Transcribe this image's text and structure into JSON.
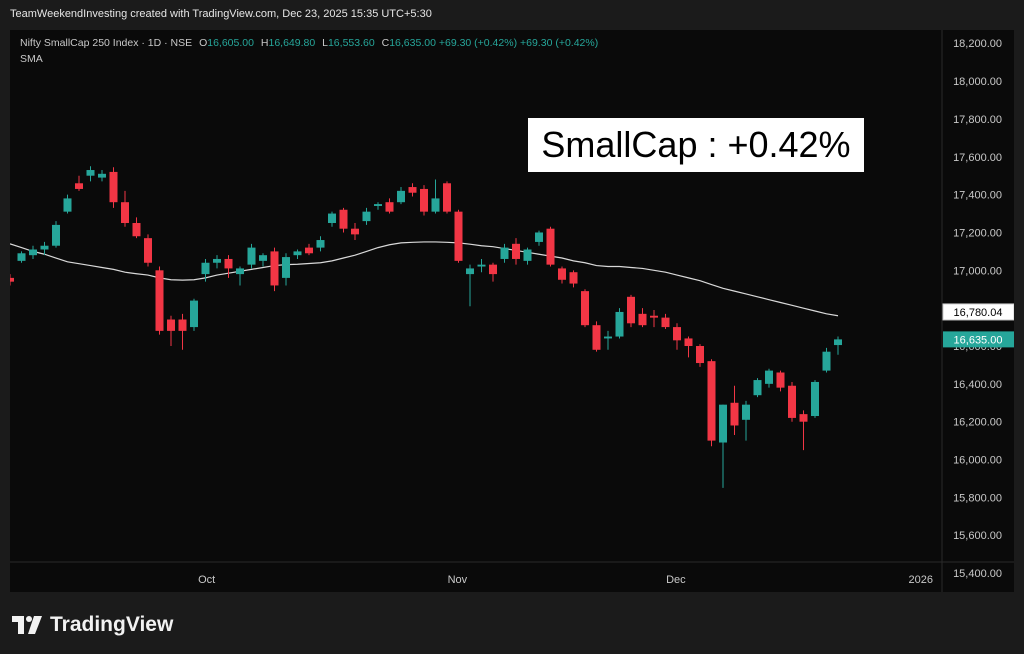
{
  "header": {
    "attribution": "TeamWeekendInvesting created with TradingView.com, Dec 23, 2025 15:35 UTC+5:30"
  },
  "legend": {
    "symbol": "Nifty SmallCap 250 Index · 1D · NSE",
    "o_label": "O",
    "o_value": "16,605.00",
    "h_label": "H",
    "h_value": "16,649.80",
    "l_label": "L",
    "l_value": "16,553.60",
    "c_label": "C",
    "c_value": "16,635.00",
    "change": "+69.30 (+0.42%)",
    "change2": "+69.30 (+0.42%)",
    "indicator": "SMA"
  },
  "annotation": {
    "text": "SmallCap : +0.42%"
  },
  "footer": {
    "brand": "TradingView"
  },
  "colors": {
    "up": "#26a69a",
    "down": "#f23645",
    "sma": "#d9d9d9",
    "background": "#0a0a0a",
    "frame": "#1b1b1b"
  },
  "chart_data": {
    "type": "candlestick",
    "ylim": [
      15300,
      18270
    ],
    "y_ticks": [
      "18,200.00",
      "18,000.00",
      "17,800.00",
      "17,600.00",
      "17,400.00",
      "17,200.00",
      "17,000.00",
      "16,800.00",
      "16,600.00",
      "16,400.00",
      "16,200.00",
      "16,000.00",
      "15,800.00",
      "15,600.00",
      "15,400.00"
    ],
    "x_ticks": [
      "Oct",
      "Nov",
      "Dec",
      "2026"
    ],
    "price_labels": [
      {
        "name": "sma-value",
        "value": 16780.04,
        "text": "16,780.04"
      },
      {
        "name": "last-close",
        "value": 16635,
        "text": "16,635.00"
      }
    ],
    "candles": [
      {
        "o": 16960,
        "h": 16980,
        "l": 16920,
        "c": 16940
      },
      {
        "o": 17050,
        "h": 17100,
        "l": 17040,
        "c": 17090
      },
      {
        "o": 17080,
        "h": 17130,
        "l": 17060,
        "c": 17110
      },
      {
        "o": 17110,
        "h": 17150,
        "l": 17080,
        "c": 17130
      },
      {
        "o": 17130,
        "h": 17260,
        "l": 17120,
        "c": 17240
      },
      {
        "o": 17310,
        "h": 17400,
        "l": 17300,
        "c": 17380
      },
      {
        "o": 17460,
        "h": 17500,
        "l": 17420,
        "c": 17430
      },
      {
        "o": 17500,
        "h": 17550,
        "l": 17470,
        "c": 17530
      },
      {
        "o": 17490,
        "h": 17530,
        "l": 17470,
        "c": 17510
      },
      {
        "o": 17520,
        "h": 17545,
        "l": 17330,
        "c": 17360
      },
      {
        "o": 17360,
        "h": 17420,
        "l": 17230,
        "c": 17250
      },
      {
        "o": 17250,
        "h": 17280,
        "l": 17170,
        "c": 17180
      },
      {
        "o": 17170,
        "h": 17190,
        "l": 17020,
        "c": 17040
      },
      {
        "o": 17000,
        "h": 17020,
        "l": 16660,
        "c": 16680
      },
      {
        "o": 16740,
        "h": 16760,
        "l": 16600,
        "c": 16680
      },
      {
        "o": 16740,
        "h": 16770,
        "l": 16580,
        "c": 16680
      },
      {
        "o": 16700,
        "h": 16850,
        "l": 16680,
        "c": 16840
      },
      {
        "o": 16980,
        "h": 17060,
        "l": 16940,
        "c": 17040
      },
      {
        "o": 17040,
        "h": 17080,
        "l": 17010,
        "c": 17060
      },
      {
        "o": 17060,
        "h": 17080,
        "l": 16960,
        "c": 17010
      },
      {
        "o": 16980,
        "h": 17020,
        "l": 16920,
        "c": 17010
      },
      {
        "o": 17030,
        "h": 17140,
        "l": 17010,
        "c": 17120
      },
      {
        "o": 17050,
        "h": 17090,
        "l": 17020,
        "c": 17080
      },
      {
        "o": 17100,
        "h": 17120,
        "l": 16890,
        "c": 16920
      },
      {
        "o": 16960,
        "h": 17090,
        "l": 16920,
        "c": 17070
      },
      {
        "o": 17080,
        "h": 17110,
        "l": 17060,
        "c": 17100
      },
      {
        "o": 17120,
        "h": 17140,
        "l": 17080,
        "c": 17090
      },
      {
        "o": 17120,
        "h": 17180,
        "l": 17100,
        "c": 17160
      },
      {
        "o": 17250,
        "h": 17310,
        "l": 17230,
        "c": 17300
      },
      {
        "o": 17320,
        "h": 17330,
        "l": 17200,
        "c": 17220
      },
      {
        "o": 17220,
        "h": 17250,
        "l": 17160,
        "c": 17190
      },
      {
        "o": 17260,
        "h": 17330,
        "l": 17240,
        "c": 17310
      },
      {
        "o": 17340,
        "h": 17360,
        "l": 17320,
        "c": 17350
      },
      {
        "o": 17360,
        "h": 17380,
        "l": 17300,
        "c": 17310
      },
      {
        "o": 17360,
        "h": 17440,
        "l": 17350,
        "c": 17420
      },
      {
        "o": 17440,
        "h": 17460,
        "l": 17390,
        "c": 17410
      },
      {
        "o": 17430,
        "h": 17450,
        "l": 17290,
        "c": 17310
      },
      {
        "o": 17310,
        "h": 17480,
        "l": 17300,
        "c": 17380
      },
      {
        "o": 17460,
        "h": 17470,
        "l": 17300,
        "c": 17310
      },
      {
        "o": 17310,
        "h": 17320,
        "l": 17040,
        "c": 17050
      },
      {
        "o": 16980,
        "h": 17030,
        "l": 16810,
        "c": 17010
      },
      {
        "o": 17020,
        "h": 17060,
        "l": 16990,
        "c": 17030
      },
      {
        "o": 17030,
        "h": 17040,
        "l": 16940,
        "c": 16980
      },
      {
        "o": 17060,
        "h": 17140,
        "l": 17040,
        "c": 17120
      },
      {
        "o": 17140,
        "h": 17170,
        "l": 17030,
        "c": 17060
      },
      {
        "o": 17050,
        "h": 17120,
        "l": 17030,
        "c": 17110
      },
      {
        "o": 17150,
        "h": 17210,
        "l": 17130,
        "c": 17200
      },
      {
        "o": 17220,
        "h": 17230,
        "l": 17020,
        "c": 17030
      },
      {
        "o": 17010,
        "h": 17020,
        "l": 16930,
        "c": 16950
      },
      {
        "o": 16990,
        "h": 17000,
        "l": 16910,
        "c": 16930
      },
      {
        "o": 16890,
        "h": 16900,
        "l": 16700,
        "c": 16710
      },
      {
        "o": 16710,
        "h": 16730,
        "l": 16570,
        "c": 16580
      },
      {
        "o": 16640,
        "h": 16680,
        "l": 16580,
        "c": 16650
      },
      {
        "o": 16650,
        "h": 16800,
        "l": 16640,
        "c": 16780
      },
      {
        "o": 16860,
        "h": 16870,
        "l": 16700,
        "c": 16720
      },
      {
        "o": 16770,
        "h": 16800,
        "l": 16700,
        "c": 16710
      },
      {
        "o": 16760,
        "h": 16790,
        "l": 16700,
        "c": 16750
      },
      {
        "o": 16750,
        "h": 16770,
        "l": 16690,
        "c": 16700
      },
      {
        "o": 16700,
        "h": 16720,
        "l": 16580,
        "c": 16630
      },
      {
        "o": 16640,
        "h": 16650,
        "l": 16540,
        "c": 16600
      },
      {
        "o": 16600,
        "h": 16610,
        "l": 16490,
        "c": 16510
      },
      {
        "o": 16520,
        "h": 16530,
        "l": 16070,
        "c": 16100
      },
      {
        "o": 16090,
        "h": 16290,
        "l": 15850,
        "c": 16290
      },
      {
        "o": 16300,
        "h": 16390,
        "l": 16130,
        "c": 16180
      },
      {
        "o": 16210,
        "h": 16310,
        "l": 16100,
        "c": 16290
      },
      {
        "o": 16340,
        "h": 16430,
        "l": 16330,
        "c": 16420
      },
      {
        "o": 16400,
        "h": 16480,
        "l": 16380,
        "c": 16470
      },
      {
        "o": 16460,
        "h": 16470,
        "l": 16360,
        "c": 16380
      },
      {
        "o": 16390,
        "h": 16410,
        "l": 16200,
        "c": 16220
      },
      {
        "o": 16240,
        "h": 16260,
        "l": 16050,
        "c": 16200
      },
      {
        "o": 16230,
        "h": 16420,
        "l": 16220,
        "c": 16410
      },
      {
        "o": 16470,
        "h": 16590,
        "l": 16460,
        "c": 16570
      },
      {
        "o": 16605,
        "h": 16650,
        "l": 16554,
        "c": 16635
      }
    ],
    "sma": [
      17140,
      17120,
      17100,
      17085,
      17065,
      17045,
      17035,
      17025,
      17015,
      17005,
      16990,
      16982,
      16975,
      16960,
      16950,
      16948,
      16950,
      16960,
      16975,
      16985,
      16995,
      17005,
      17015,
      17025,
      17030,
      17032,
      17036,
      17040,
      17050,
      17065,
      17080,
      17100,
      17120,
      17135,
      17145,
      17148,
      17150,
      17150,
      17148,
      17145,
      17138,
      17130,
      17125,
      17115,
      17105,
      17095,
      17085,
      17075,
      17065,
      17050,
      17040,
      17025,
      17020,
      17020,
      17015,
      17010,
      17000,
      16990,
      16975,
      16960,
      16945,
      16925,
      16905,
      16890,
      16875,
      16860,
      16845,
      16830,
      16815,
      16800,
      16785,
      16770,
      16760
    ]
  }
}
